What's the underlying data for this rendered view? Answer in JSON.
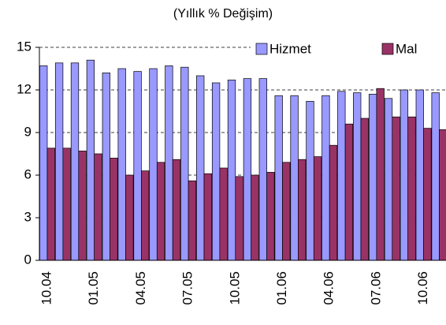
{
  "chart_data": {
    "type": "bar",
    "title": "(Yıllık % Değişim)",
    "categories": [
      "10.04",
      null,
      null,
      "01.05",
      null,
      null,
      "04.05",
      null,
      null,
      "07.05",
      null,
      null,
      "10.05",
      null,
      null,
      "01.06",
      null,
      null,
      "04.06",
      null,
      null,
      "07.06",
      null,
      null,
      "10.06",
      null
    ],
    "series": [
      {
        "name": "Hizmet",
        "color": "#9999ff",
        "values": [
          13.7,
          13.9,
          13.9,
          14.1,
          13.2,
          13.5,
          13.3,
          13.5,
          13.7,
          13.6,
          13.0,
          12.5,
          12.7,
          12.8,
          12.8,
          11.6,
          11.6,
          11.2,
          11.6,
          11.9,
          11.8,
          11.7,
          11.4,
          12.0,
          12.0,
          11.8
        ]
      },
      {
        "name": "Mal",
        "color": "#993366",
        "values": [
          7.9,
          7.9,
          7.7,
          7.5,
          7.2,
          6.0,
          6.3,
          6.9,
          7.1,
          5.6,
          6.1,
          6.5,
          5.9,
          6.0,
          6.2,
          6.9,
          7.1,
          7.3,
          8.1,
          9.6,
          10.0,
          12.1,
          10.1,
          10.1,
          9.3,
          9.2
        ]
      }
    ],
    "ylim": [
      0,
      15
    ],
    "yticks": [
      0,
      3,
      6,
      9,
      12,
      15
    ],
    "grid": true,
    "legend": "top-right"
  }
}
